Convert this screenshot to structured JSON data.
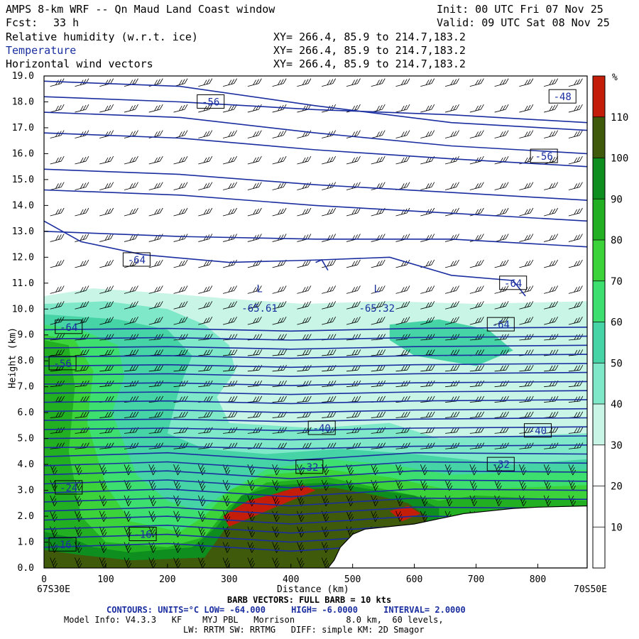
{
  "header": {
    "title": "AMPS 8-km WRF -- Qn Maud Land Coast window",
    "init": "Init: 00 UTC Fri 07 Nov 25",
    "fcst_label": "Fcst:",
    "fcst_value": "33 h",
    "valid": "Valid: 09 UTC Sat 08 Nov 25",
    "fields": [
      {
        "name": "Relative humidity (w.r.t. ice)",
        "xy": "XY= 266.4, 85.9 to 214.7,183.2"
      },
      {
        "name": "Temperature",
        "xy": "XY= 266.4, 85.9 to 214.7,183.2"
      },
      {
        "name": "Horizontal wind vectors",
        "xy": "XY= 266.4, 85.9 to 214.7,183.2"
      }
    ]
  },
  "colors": {
    "contour": "#1a2ea0",
    "terrain": "#ffffff"
  },
  "chart_data": {
    "type": "heatmap",
    "title": "Relative humidity (w.r.t. ice)",
    "xlabel": "Distance (km)",
    "ylabel": "Height (km)",
    "xlim": [
      0,
      880
    ],
    "ylim": [
      0,
      19
    ],
    "x_ticks": [
      0,
      100,
      200,
      300,
      400,
      500,
      600,
      700,
      800
    ],
    "y_ticks": [
      "0.0",
      "1.0",
      "2.0",
      "3.0",
      "4.0",
      "5.0",
      "6.0",
      "7.0",
      "8.0",
      "9.0",
      "10.0",
      "11.0",
      "12.0",
      "13.0",
      "14.0",
      "15.0",
      "16.0",
      "17.0",
      "18.0",
      "19.0"
    ],
    "x_start_label": "67S30E",
    "x_end_label": "70S50E",
    "colorbar": {
      "unit": "%",
      "levels": [
        10,
        20,
        30,
        40,
        50,
        60,
        70,
        80,
        90,
        100,
        110
      ],
      "colors": [
        "#ffffff",
        "#ffffff",
        "#ffffff",
        "#c8f5e6",
        "#7fe8c8",
        "#46d4a6",
        "#3ddf6e",
        "#3cd23a",
        "#22b022",
        "#0e8e1e",
        "#3f5a0a",
        "#c41e0a"
      ]
    },
    "temperature_labels": [
      "-56",
      "-48",
      "-56",
      "-64",
      "-64",
      "-64",
      "-64",
      "-56",
      "-40",
      "-40",
      "-32",
      "-32",
      "-24",
      "-16",
      "-16"
    ],
    "extrema": [
      {
        "marker": "L",
        "value": "-65.61",
        "x": 340,
        "y": 10.1
      },
      {
        "marker": "L",
        "value": "-65.32",
        "x": 530,
        "y": 10.1
      }
    ],
    "terrain_profile": {
      "x": [
        460,
        470,
        480,
        500,
        520,
        560,
        600,
        640,
        680,
        720,
        760,
        800,
        880
      ],
      "y": [
        0,
        0.3,
        0.8,
        1.3,
        1.5,
        1.6,
        1.7,
        1.9,
        2.1,
        2.2,
        2.3,
        2.35,
        2.4
      ]
    },
    "contours_units": "°C",
    "low": "-64.000",
    "high": "-6.0000",
    "interval": "2.0000"
  },
  "footer": {
    "barb": "BARB VECTORS: FULL BARB = 10 kts",
    "contours": "CONTOURS: UNITS=°C LOW= -64.000     HIGH= -6.0000     INTERVAL= 2.0000",
    "model1": "Model Info: V4.3.3   KF    MYJ PBL   Morrison          8.0 km,  60 levels,",
    "model2": "LW: RRTM SW: RRTMG   DIFF: simple KM: 2D Smagor"
  }
}
